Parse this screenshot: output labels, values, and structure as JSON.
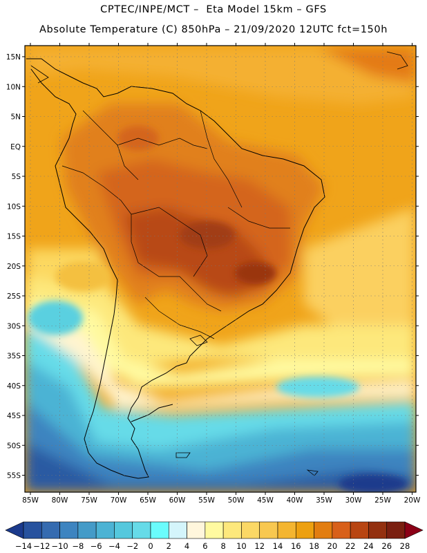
{
  "header": {
    "title_line1": "CPTEC/INPE/MCT –  Eta Model 15km – GFS",
    "title_line2": "Absolute Temperature (C) 850hPa – 21/09/2020 12UTC fct=150h"
  },
  "map": {
    "lat_ticks": [
      "15N",
      "10N",
      "5N",
      "EQ",
      "5S",
      "10S",
      "15S",
      "20S",
      "25S",
      "30S",
      "35S",
      "40S",
      "45S",
      "50S",
      "55S"
    ],
    "lon_ticks": [
      "85W",
      "80W",
      "75W",
      "70W",
      "65W",
      "60W",
      "55W",
      "50W",
      "45W",
      "40W",
      "35W",
      "30W",
      "25W",
      "20W"
    ]
  },
  "colorbar": {
    "labels": [
      "-14",
      "-12",
      "-10",
      "-8",
      "-6",
      "-4",
      "-2",
      "0",
      "2",
      "4",
      "6",
      "8",
      "10",
      "12",
      "14",
      "16",
      "18",
      "20",
      "22",
      "24",
      "26",
      "28"
    ],
    "colors": [
      "#1b3a8c",
      "#27529e",
      "#356bb0",
      "#3d84c0",
      "#449bc8",
      "#4cb3d4",
      "#55c8dd",
      "#66dbe8",
      "#6afcfc",
      "#d4f5fb",
      "#fff6dc",
      "#fffaa0",
      "#fde87c",
      "#fbd865",
      "#f8c850",
      "#f4b530",
      "#eda010",
      "#e27d10",
      "#d8601a",
      "#b84512",
      "#93300f",
      "#7a1f10",
      "#8b0016"
    ]
  }
}
